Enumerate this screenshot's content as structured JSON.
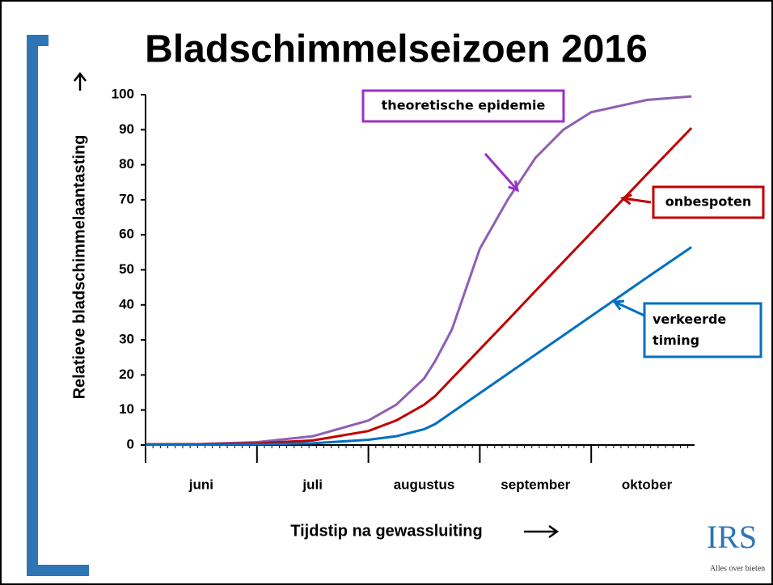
{
  "chart_data": {
    "type": "line",
    "title": "Bladschimmelseizoen 2016",
    "y_label": "Relatieve bladschimmelaantasting",
    "x_label": "Tijdstip na gewassluiting",
    "categories": [
      "juni",
      "juli",
      "augustus",
      "september",
      "oktober"
    ],
    "x": [
      0,
      0.5,
      1,
      1.5,
      2,
      2.25,
      2.5,
      2.6,
      2.75,
      3,
      3.25,
      3.5,
      3.75,
      4,
      4.5,
      4.9
    ],
    "xlim": [
      0,
      5
    ],
    "series": [
      {
        "name": "theoretische epidemie",
        "color": "#8e5fb4",
        "box_color": "#9b30c8",
        "values": [
          0.2,
          0.3,
          0.8,
          2.5,
          7,
          11.5,
          19,
          24,
          33,
          56,
          70,
          82,
          90,
          95,
          98.5,
          99.5
        ]
      },
      {
        "name": "onbespoten",
        "color": "#c00000",
        "box_color": "#c00000",
        "values": [
          0.2,
          0.2,
          0.5,
          1.3,
          4,
          7,
          11.5,
          14,
          19,
          27.3,
          35.6,
          44,
          52.3,
          60.6,
          77.3,
          90.5
        ]
      },
      {
        "name": "verkeerde timing",
        "color": "#0070c0",
        "box_color": "#0070c0",
        "values": [
          0.1,
          0.1,
          0.2,
          0.5,
          1.5,
          2.5,
          4.5,
          6,
          9.3,
          14.8,
          20.3,
          25.8,
          31.3,
          36.8,
          47.8,
          56.5
        ]
      }
    ],
    "ylim": [
      0,
      100
    ],
    "yticks": [
      0,
      10,
      20,
      30,
      40,
      50,
      60,
      70,
      80,
      90,
      100
    ],
    "logo": {
      "name": "IRS",
      "tagline": "Alles over bieten"
    }
  }
}
